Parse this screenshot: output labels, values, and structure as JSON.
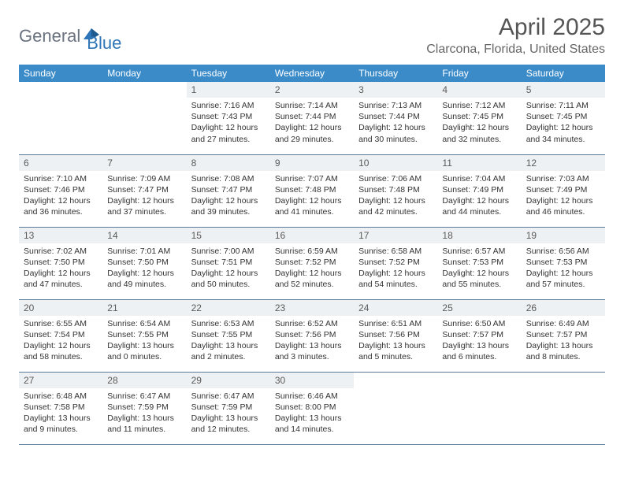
{
  "logo": {
    "text1": "General",
    "text2": "Blue"
  },
  "title": "April 2025",
  "location": "Clarcona, Florida, United States",
  "colors": {
    "header_bg": "#3b8bc9",
    "header_text": "#ffffff",
    "daynum_bg": "#eef1f3",
    "border": "#5a7a9a",
    "logo_blue": "#2f76b8",
    "logo_gray": "#6b7280"
  },
  "day_names": [
    "Sunday",
    "Monday",
    "Tuesday",
    "Wednesday",
    "Thursday",
    "Friday",
    "Saturday"
  ],
  "weeks": [
    [
      null,
      null,
      {
        "n": "1",
        "sr": "Sunrise: 7:16 AM",
        "ss": "Sunset: 7:43 PM",
        "dl": "Daylight: 12 hours and 27 minutes."
      },
      {
        "n": "2",
        "sr": "Sunrise: 7:14 AM",
        "ss": "Sunset: 7:44 PM",
        "dl": "Daylight: 12 hours and 29 minutes."
      },
      {
        "n": "3",
        "sr": "Sunrise: 7:13 AM",
        "ss": "Sunset: 7:44 PM",
        "dl": "Daylight: 12 hours and 30 minutes."
      },
      {
        "n": "4",
        "sr": "Sunrise: 7:12 AM",
        "ss": "Sunset: 7:45 PM",
        "dl": "Daylight: 12 hours and 32 minutes."
      },
      {
        "n": "5",
        "sr": "Sunrise: 7:11 AM",
        "ss": "Sunset: 7:45 PM",
        "dl": "Daylight: 12 hours and 34 minutes."
      }
    ],
    [
      {
        "n": "6",
        "sr": "Sunrise: 7:10 AM",
        "ss": "Sunset: 7:46 PM",
        "dl": "Daylight: 12 hours and 36 minutes."
      },
      {
        "n": "7",
        "sr": "Sunrise: 7:09 AM",
        "ss": "Sunset: 7:47 PM",
        "dl": "Daylight: 12 hours and 37 minutes."
      },
      {
        "n": "8",
        "sr": "Sunrise: 7:08 AM",
        "ss": "Sunset: 7:47 PM",
        "dl": "Daylight: 12 hours and 39 minutes."
      },
      {
        "n": "9",
        "sr": "Sunrise: 7:07 AM",
        "ss": "Sunset: 7:48 PM",
        "dl": "Daylight: 12 hours and 41 minutes."
      },
      {
        "n": "10",
        "sr": "Sunrise: 7:06 AM",
        "ss": "Sunset: 7:48 PM",
        "dl": "Daylight: 12 hours and 42 minutes."
      },
      {
        "n": "11",
        "sr": "Sunrise: 7:04 AM",
        "ss": "Sunset: 7:49 PM",
        "dl": "Daylight: 12 hours and 44 minutes."
      },
      {
        "n": "12",
        "sr": "Sunrise: 7:03 AM",
        "ss": "Sunset: 7:49 PM",
        "dl": "Daylight: 12 hours and 46 minutes."
      }
    ],
    [
      {
        "n": "13",
        "sr": "Sunrise: 7:02 AM",
        "ss": "Sunset: 7:50 PM",
        "dl": "Daylight: 12 hours and 47 minutes."
      },
      {
        "n": "14",
        "sr": "Sunrise: 7:01 AM",
        "ss": "Sunset: 7:50 PM",
        "dl": "Daylight: 12 hours and 49 minutes."
      },
      {
        "n": "15",
        "sr": "Sunrise: 7:00 AM",
        "ss": "Sunset: 7:51 PM",
        "dl": "Daylight: 12 hours and 50 minutes."
      },
      {
        "n": "16",
        "sr": "Sunrise: 6:59 AM",
        "ss": "Sunset: 7:52 PM",
        "dl": "Daylight: 12 hours and 52 minutes."
      },
      {
        "n": "17",
        "sr": "Sunrise: 6:58 AM",
        "ss": "Sunset: 7:52 PM",
        "dl": "Daylight: 12 hours and 54 minutes."
      },
      {
        "n": "18",
        "sr": "Sunrise: 6:57 AM",
        "ss": "Sunset: 7:53 PM",
        "dl": "Daylight: 12 hours and 55 minutes."
      },
      {
        "n": "19",
        "sr": "Sunrise: 6:56 AM",
        "ss": "Sunset: 7:53 PM",
        "dl": "Daylight: 12 hours and 57 minutes."
      }
    ],
    [
      {
        "n": "20",
        "sr": "Sunrise: 6:55 AM",
        "ss": "Sunset: 7:54 PM",
        "dl": "Daylight: 12 hours and 58 minutes."
      },
      {
        "n": "21",
        "sr": "Sunrise: 6:54 AM",
        "ss": "Sunset: 7:55 PM",
        "dl": "Daylight: 13 hours and 0 minutes."
      },
      {
        "n": "22",
        "sr": "Sunrise: 6:53 AM",
        "ss": "Sunset: 7:55 PM",
        "dl": "Daylight: 13 hours and 2 minutes."
      },
      {
        "n": "23",
        "sr": "Sunrise: 6:52 AM",
        "ss": "Sunset: 7:56 PM",
        "dl": "Daylight: 13 hours and 3 minutes."
      },
      {
        "n": "24",
        "sr": "Sunrise: 6:51 AM",
        "ss": "Sunset: 7:56 PM",
        "dl": "Daylight: 13 hours and 5 minutes."
      },
      {
        "n": "25",
        "sr": "Sunrise: 6:50 AM",
        "ss": "Sunset: 7:57 PM",
        "dl": "Daylight: 13 hours and 6 minutes."
      },
      {
        "n": "26",
        "sr": "Sunrise: 6:49 AM",
        "ss": "Sunset: 7:57 PM",
        "dl": "Daylight: 13 hours and 8 minutes."
      }
    ],
    [
      {
        "n": "27",
        "sr": "Sunrise: 6:48 AM",
        "ss": "Sunset: 7:58 PM",
        "dl": "Daylight: 13 hours and 9 minutes."
      },
      {
        "n": "28",
        "sr": "Sunrise: 6:47 AM",
        "ss": "Sunset: 7:59 PM",
        "dl": "Daylight: 13 hours and 11 minutes."
      },
      {
        "n": "29",
        "sr": "Sunrise: 6:47 AM",
        "ss": "Sunset: 7:59 PM",
        "dl": "Daylight: 13 hours and 12 minutes."
      },
      {
        "n": "30",
        "sr": "Sunrise: 6:46 AM",
        "ss": "Sunset: 8:00 PM",
        "dl": "Daylight: 13 hours and 14 minutes."
      },
      null,
      null,
      null
    ]
  ]
}
